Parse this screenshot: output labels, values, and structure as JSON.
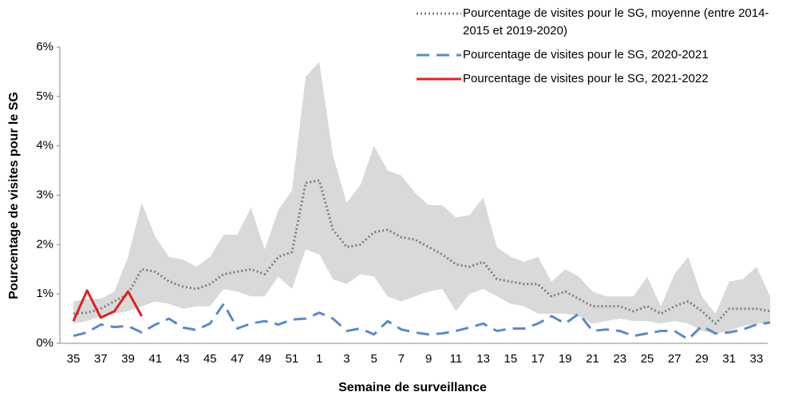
{
  "chart_data": {
    "type": "line",
    "xlabel": "Semaine de surveillance",
    "ylabel": "Pourcentage de visites pour le SG",
    "categories": [
      "35",
      null,
      "37",
      null,
      "39",
      null,
      "41",
      null,
      "43",
      null,
      "45",
      null,
      "47",
      null,
      "49",
      null,
      "51",
      null,
      "1",
      null,
      "3",
      null,
      "5",
      null,
      "7",
      null,
      "9",
      null,
      "11",
      null,
      "13",
      null,
      "15",
      null,
      "17",
      null,
      "19",
      null,
      "21",
      null,
      "23",
      null,
      "25",
      null,
      "27",
      null,
      "29",
      null,
      "31",
      null,
      "33",
      null
    ],
    "ylim": [
      0,
      6
    ],
    "yticks": [
      {
        "value": 0,
        "label": "0%"
      },
      {
        "value": 1,
        "label": "1%"
      },
      {
        "value": 2,
        "label": "2%"
      },
      {
        "value": 3,
        "label": "3%"
      },
      {
        "value": 4,
        "label": "4%"
      },
      {
        "value": 5,
        "label": "5%"
      },
      {
        "value": 6,
        "label": "6%"
      }
    ],
    "legend": "top-right",
    "band": {
      "color": "#d9d9d9",
      "upper": [
        0.85,
        0.9,
        0.9,
        1.05,
        1.75,
        2.85,
        2.15,
        1.75,
        1.7,
        1.55,
        1.75,
        2.2,
        2.2,
        2.75,
        1.9,
        2.7,
        3.1,
        5.4,
        5.7,
        3.8,
        2.85,
        3.2,
        4.0,
        3.5,
        3.4,
        3.05,
        2.8,
        2.8,
        2.55,
        2.6,
        2.95,
        1.95,
        1.75,
        1.65,
        1.75,
        1.25,
        1.5,
        1.35,
        1.05,
        0.95,
        0.95,
        0.95,
        1.35,
        0.75,
        1.4,
        1.75,
        0.95,
        0.6,
        1.25,
        1.3,
        1.55,
        0.95
      ],
      "lower": [
        0.4,
        0.45,
        0.55,
        0.6,
        0.65,
        0.75,
        0.85,
        0.8,
        0.7,
        0.75,
        0.75,
        1.1,
        1.05,
        0.95,
        0.95,
        1.35,
        1.1,
        1.9,
        1.8,
        1.3,
        1.2,
        1.4,
        1.35,
        0.95,
        0.85,
        0.95,
        1.05,
        1.1,
        0.65,
        1.0,
        1.1,
        0.95,
        0.8,
        0.75,
        0.6,
        0.6,
        0.6,
        0.55,
        0.4,
        0.45,
        0.5,
        0.45,
        0.45,
        0.4,
        0.45,
        0.4,
        0.25,
        0.2,
        0.25,
        0.35,
        0.4,
        0.4
      ]
    },
    "series": [
      {
        "name": "Pourcentage de visites pour le SG, moyenne (entre 2014-2015 et 2019-2020)",
        "color": "#808080",
        "style": "dotted",
        "values": [
          0.6,
          0.62,
          0.7,
          0.85,
          1.0,
          1.5,
          1.45,
          1.25,
          1.15,
          1.1,
          1.2,
          1.4,
          1.45,
          1.5,
          1.4,
          1.75,
          1.85,
          3.25,
          3.3,
          2.3,
          1.95,
          2.0,
          2.25,
          2.3,
          2.15,
          2.1,
          1.95,
          1.8,
          1.6,
          1.55,
          1.65,
          1.3,
          1.25,
          1.2,
          1.2,
          0.95,
          1.05,
          0.9,
          0.75,
          0.75,
          0.75,
          0.65,
          0.75,
          0.6,
          0.75,
          0.85,
          0.65,
          0.4,
          0.7,
          0.7,
          0.7,
          0.65
        ]
      },
      {
        "name": "Pourcentage de visites pour le SG, 2020-2021",
        "color": "#5b8ac6",
        "style": "dashed",
        "values": [
          0.15,
          0.22,
          0.38,
          0.33,
          0.35,
          0.22,
          0.38,
          0.5,
          0.32,
          0.27,
          0.4,
          0.8,
          0.3,
          0.4,
          0.45,
          0.38,
          0.48,
          0.5,
          0.62,
          0.5,
          0.25,
          0.3,
          0.18,
          0.45,
          0.28,
          0.22,
          0.18,
          0.2,
          0.25,
          0.32,
          0.4,
          0.25,
          0.3,
          0.3,
          0.4,
          0.55,
          0.4,
          0.6,
          0.25,
          0.28,
          0.25,
          0.15,
          0.2,
          0.25,
          0.25,
          0.08,
          0.35,
          0.2,
          0.22,
          0.28,
          0.38,
          0.42
        ]
      },
      {
        "name": "Pourcentage de visites pour le SG, 2021-2022",
        "color": "#e02020",
        "style": "solid",
        "values": [
          0.45,
          1.07,
          0.52,
          0.65,
          1.05,
          0.55,
          null,
          null,
          null,
          null,
          null,
          null,
          null,
          null,
          null,
          null,
          null,
          null,
          null,
          null,
          null,
          null,
          null,
          null,
          null,
          null,
          null,
          null,
          null,
          null,
          null,
          null,
          null,
          null,
          null,
          null,
          null,
          null,
          null,
          null,
          null,
          null,
          null,
          null,
          null,
          null,
          null,
          null,
          null,
          null,
          null,
          null
        ]
      }
    ]
  }
}
